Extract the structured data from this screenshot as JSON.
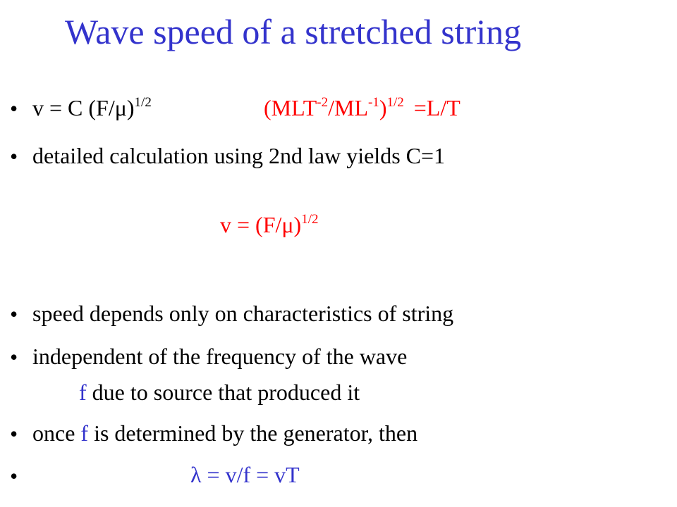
{
  "title": "Wave speed of a stretched string",
  "bullet_glyph": "•",
  "b1": {
    "formula": "v = C (F/μ)",
    "exp": "1/2",
    "dim_open": "(MLT",
    "dim_exp1": "-2",
    "dim_mid": "/ML",
    "dim_exp2": "-1",
    "dim_close": ")",
    "dim_exp3": "1/2",
    "dim_result": "=L/T"
  },
  "b2": {
    "text": "detailed calculation using 2nd law yields C=1"
  },
  "center_formula": {
    "text": "v = (F/μ)",
    "exp": "1/2"
  },
  "b3": {
    "text": "speed depends only on characteristics of string"
  },
  "b4": {
    "line1": "independent of the frequency of the wave",
    "line2_f": "f",
    "line2_rest": " due to source that produced it"
  },
  "b5": {
    "pre": "once ",
    "f": "f",
    "post": " is determined by the generator, then"
  },
  "b6": {
    "text": "λ = v/f = vT"
  },
  "colors": {
    "title": "#3333cc",
    "accent_red": "#ff0000",
    "accent_blue": "#3333cc"
  }
}
